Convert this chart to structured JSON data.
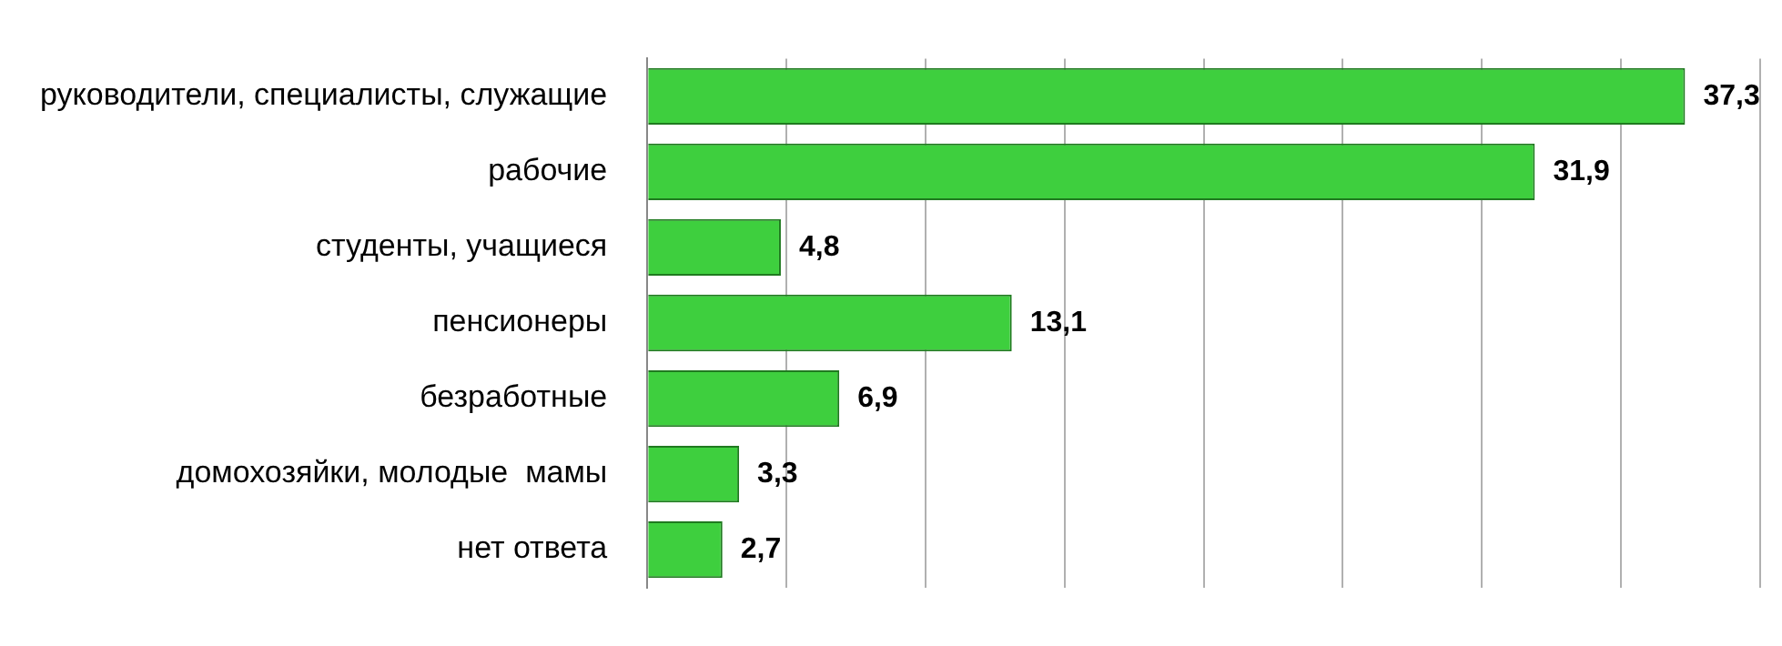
{
  "chart_data": {
    "type": "bar",
    "orientation": "horizontal",
    "categories": [
      "руководители, специалисты, служащие",
      "рабочие",
      "студенты, учащиеся",
      "пенсионеры",
      "безработные",
      "домохозяйки, молодые  мамы",
      "нет ответа"
    ],
    "values": [
      37.3,
      31.9,
      4.8,
      13.1,
      6.9,
      3.3,
      2.7
    ],
    "value_labels": [
      "37,3",
      "31,9",
      "4,8",
      "13,1",
      "6,9",
      "3,3",
      "2,7"
    ],
    "color": "#3ecf3e",
    "xlim": [
      0,
      40
    ],
    "xticks": [
      {
        "value": 0,
        "label": null
      },
      {
        "value": 5,
        "label": null
      },
      {
        "value": 10,
        "label": null
      },
      {
        "value": 15,
        "label": null
      },
      {
        "value": 20,
        "label": null
      },
      {
        "value": 25,
        "label": null
      },
      {
        "value": 30,
        "label": null
      },
      {
        "value": 35,
        "label": null
      },
      {
        "value": 40,
        "label": null
      }
    ],
    "tick_labels": "y",
    "grid": "x",
    "legend": false
  }
}
